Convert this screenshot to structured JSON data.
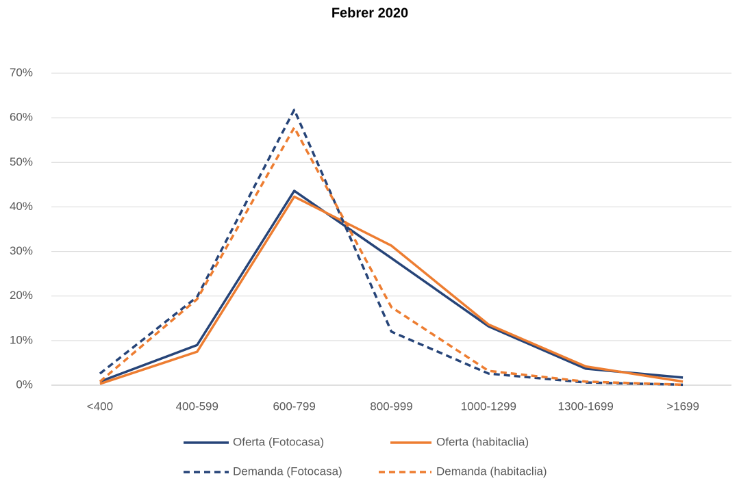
{
  "chart_data": {
    "type": "line",
    "title": "Febrer 2020",
    "categories": [
      "<400",
      "400-599",
      "600-799",
      "800-999",
      "1000-1299",
      "1300-1699",
      ">1699"
    ],
    "ylim": [
      0,
      70
    ],
    "yticks": [
      {
        "value": 0,
        "label": "0%"
      },
      {
        "value": 10,
        "label": "10%"
      },
      {
        "value": 20,
        "label": "20%"
      },
      {
        "value": 30,
        "label": "30%"
      },
      {
        "value": 40,
        "label": "40%"
      },
      {
        "value": 50,
        "label": "50%"
      },
      {
        "value": 60,
        "label": "60%"
      },
      {
        "value": 70,
        "label": "70%"
      }
    ],
    "grid": true,
    "legend": "bottom",
    "series": [
      {
        "name": "Oferta (Fotocasa)",
        "color": "#264478",
        "linestyle": "solid",
        "values": [
          0.8,
          9.0,
          43.6,
          28.5,
          13.2,
          3.7,
          1.7
        ]
      },
      {
        "name": "Oferta (habitaclia)",
        "color": "#ED7D31",
        "linestyle": "solid",
        "values": [
          0.3,
          7.5,
          42.3,
          31.3,
          13.6,
          4.2,
          0.8
        ]
      },
      {
        "name": "Demanda (Fotocasa)",
        "color": "#264478",
        "linestyle": "dashed",
        "values": [
          2.6,
          19.8,
          61.8,
          12.0,
          2.6,
          0.6,
          0.1
        ]
      },
      {
        "name": "Demanda (habitaclia)",
        "color": "#ED7D31",
        "linestyle": "dashed",
        "values": [
          0.8,
          19.3,
          57.8,
          17.5,
          3.2,
          0.8,
          0.1
        ]
      }
    ]
  }
}
